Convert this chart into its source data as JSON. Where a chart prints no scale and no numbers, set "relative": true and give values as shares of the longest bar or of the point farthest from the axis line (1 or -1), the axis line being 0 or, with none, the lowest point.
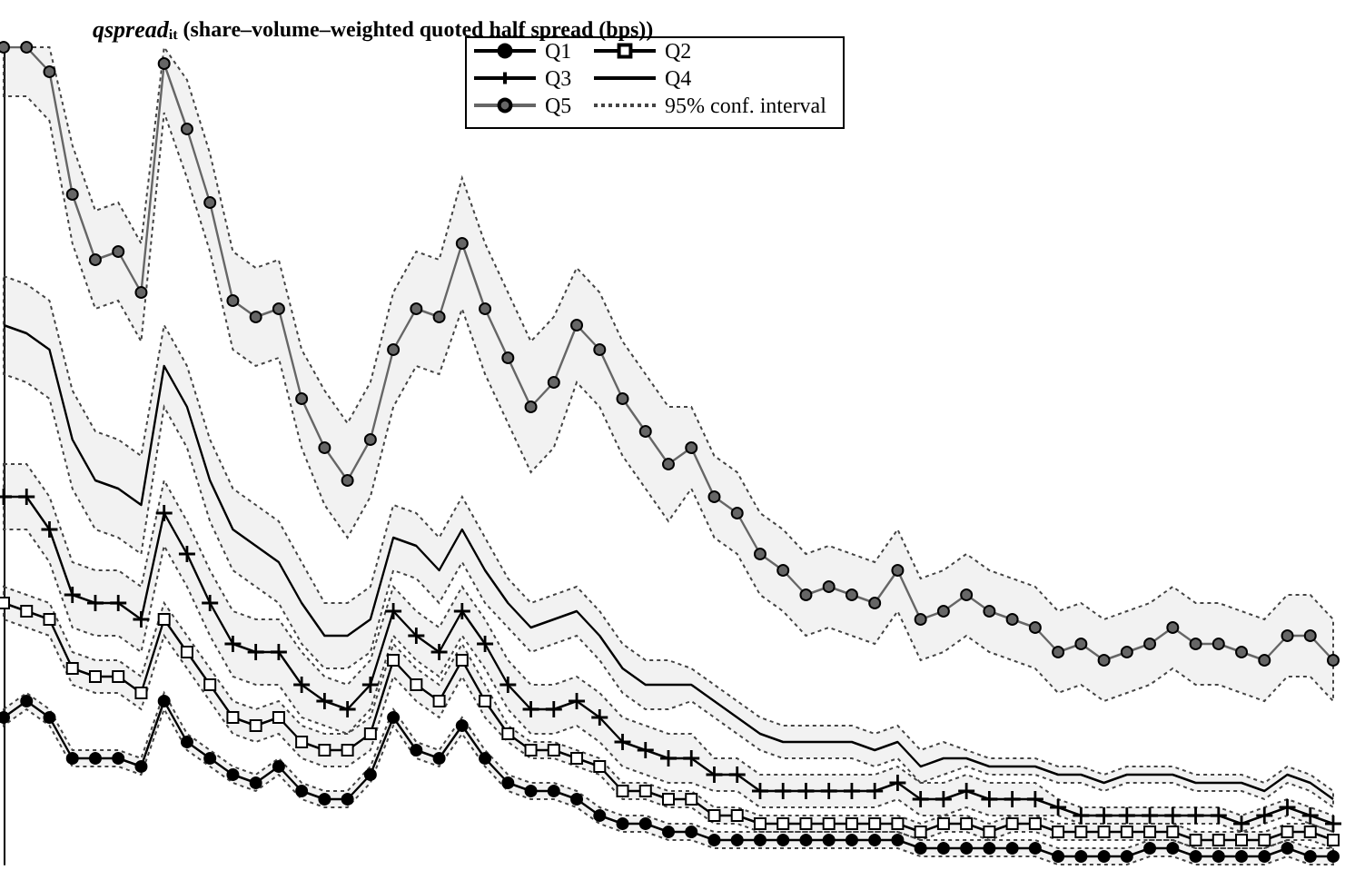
{
  "chart_data": {
    "type": "line",
    "relative": true,
    "title": "qspread$_{it}$ (share–volume–weighted quoted half spread (bps))",
    "annotations": [
      "95% conf. interval"
    ],
    "legend": "top",
    "categories": [
      null,
      null,
      null,
      null,
      null,
      null,
      null,
      null,
      null,
      null,
      null,
      null,
      null,
      null,
      null,
      null,
      null,
      null,
      null,
      null,
      null,
      null,
      null,
      null,
      null,
      null,
      null,
      null,
      null,
      null,
      null,
      null,
      null,
      null,
      null,
      null,
      null,
      null,
      null,
      null,
      null,
      null,
      null,
      null,
      null,
      null,
      null,
      null,
      null,
      null,
      null,
      null,
      null,
      null,
      null,
      null,
      null,
      null,
      null
    ],
    "series": [
      {
        "name": "Q1",
        "color": "#000000",
        "marker": "circle",
        "values": [
          0.18,
          0.2,
          0.18,
          0.13,
          0.13,
          0.13,
          0.12,
          0.2,
          0.15,
          0.13,
          0.11,
          0.1,
          0.12,
          0.09,
          0.08,
          0.08,
          0.11,
          0.18,
          0.14,
          0.13,
          0.17,
          0.13,
          0.1,
          0.09,
          0.09,
          0.08,
          0.06,
          0.05,
          0.05,
          0.04,
          0.04,
          0.03,
          0.03,
          0.03,
          0.03,
          0.03,
          0.03,
          0.03,
          0.03,
          0.03,
          0.02,
          0.02,
          0.02,
          0.02,
          0.02,
          0.02,
          0.01,
          0.01,
          0.01,
          0.01,
          0.02,
          0.02,
          0.01,
          0.01,
          0.01,
          0.01,
          0.02,
          0.01,
          0.01
        ],
        "upper": [
          0.19,
          0.21,
          0.19,
          0.14,
          0.14,
          0.14,
          0.13,
          0.21,
          0.16,
          0.14,
          0.12,
          0.11,
          0.13,
          0.1,
          0.09,
          0.09,
          0.12,
          0.19,
          0.15,
          0.14,
          0.18,
          0.14,
          0.11,
          0.1,
          0.1,
          0.09,
          0.07,
          0.06,
          0.06,
          0.05,
          0.05,
          0.04,
          0.04,
          0.04,
          0.04,
          0.04,
          0.04,
          0.04,
          0.04,
          0.04,
          0.03,
          0.03,
          0.03,
          0.03,
          0.03,
          0.03,
          0.02,
          0.02,
          0.02,
          0.02,
          0.03,
          0.03,
          0.02,
          0.02,
          0.02,
          0.02,
          0.03,
          0.02,
          0.02
        ],
        "lower": [
          0.17,
          0.19,
          0.17,
          0.12,
          0.12,
          0.12,
          0.11,
          0.19,
          0.14,
          0.12,
          0.1,
          0.09,
          0.11,
          0.08,
          0.07,
          0.07,
          0.1,
          0.17,
          0.13,
          0.12,
          0.16,
          0.12,
          0.09,
          0.08,
          0.08,
          0.07,
          0.05,
          0.04,
          0.04,
          0.03,
          0.03,
          0.02,
          0.02,
          0.02,
          0.02,
          0.02,
          0.02,
          0.02,
          0.02,
          0.02,
          0.01,
          0.01,
          0.01,
          0.01,
          0.01,
          0.01,
          0.0,
          0.0,
          0.0,
          0.0,
          0.01,
          0.01,
          0.0,
          0.0,
          0.0,
          0.0,
          0.01,
          0.0,
          0.0
        ]
      },
      {
        "name": "Q2",
        "color": "#000000",
        "marker": "square",
        "values": [
          0.32,
          0.31,
          0.3,
          0.24,
          0.23,
          0.23,
          0.21,
          0.3,
          0.26,
          0.22,
          0.18,
          0.17,
          0.18,
          0.15,
          0.14,
          0.14,
          0.16,
          0.25,
          0.22,
          0.2,
          0.25,
          0.2,
          0.16,
          0.14,
          0.14,
          0.13,
          0.12,
          0.09,
          0.09,
          0.08,
          0.08,
          0.06,
          0.06,
          0.05,
          0.05,
          0.05,
          0.05,
          0.05,
          0.05,
          0.05,
          0.04,
          0.05,
          0.05,
          0.04,
          0.05,
          0.05,
          0.04,
          0.04,
          0.04,
          0.04,
          0.04,
          0.04,
          0.03,
          0.03,
          0.03,
          0.03,
          0.04,
          0.04,
          0.03
        ],
        "upper": [
          0.34,
          0.33,
          0.32,
          0.26,
          0.25,
          0.25,
          0.23,
          0.32,
          0.28,
          0.24,
          0.2,
          0.19,
          0.2,
          0.17,
          0.16,
          0.16,
          0.18,
          0.27,
          0.24,
          0.22,
          0.27,
          0.22,
          0.17,
          0.15,
          0.15,
          0.14,
          0.13,
          0.1,
          0.1,
          0.09,
          0.09,
          0.07,
          0.07,
          0.06,
          0.06,
          0.06,
          0.06,
          0.06,
          0.06,
          0.06,
          0.05,
          0.06,
          0.06,
          0.05,
          0.06,
          0.06,
          0.05,
          0.05,
          0.05,
          0.05,
          0.05,
          0.05,
          0.04,
          0.04,
          0.04,
          0.04,
          0.05,
          0.05,
          0.04
        ],
        "lower": [
          0.3,
          0.29,
          0.28,
          0.22,
          0.21,
          0.21,
          0.19,
          0.28,
          0.24,
          0.2,
          0.16,
          0.15,
          0.16,
          0.13,
          0.12,
          0.12,
          0.14,
          0.23,
          0.2,
          0.18,
          0.23,
          0.18,
          0.15,
          0.13,
          0.13,
          0.12,
          0.11,
          0.08,
          0.08,
          0.07,
          0.07,
          0.05,
          0.05,
          0.04,
          0.04,
          0.04,
          0.04,
          0.04,
          0.04,
          0.04,
          0.03,
          0.04,
          0.04,
          0.03,
          0.04,
          0.04,
          0.03,
          0.03,
          0.03,
          0.03,
          0.03,
          0.03,
          0.02,
          0.02,
          0.02,
          0.02,
          0.03,
          0.03,
          0.02
        ]
      },
      {
        "name": "Q3",
        "color": "#000000",
        "marker": "cross",
        "values": [
          0.45,
          0.45,
          0.41,
          0.33,
          0.32,
          0.32,
          0.3,
          0.43,
          0.38,
          0.32,
          0.27,
          0.26,
          0.26,
          0.22,
          0.2,
          0.19,
          0.22,
          0.31,
          0.28,
          0.26,
          0.31,
          0.27,
          0.22,
          0.19,
          0.19,
          0.2,
          0.18,
          0.15,
          0.14,
          0.13,
          0.13,
          0.11,
          0.11,
          0.09,
          0.09,
          0.09,
          0.09,
          0.09,
          0.09,
          0.1,
          0.08,
          0.08,
          0.09,
          0.08,
          0.08,
          0.08,
          0.07,
          0.06,
          0.06,
          0.06,
          0.06,
          0.06,
          0.06,
          0.06,
          0.05,
          0.06,
          0.07,
          0.06,
          0.05
        ],
        "upper": [
          0.49,
          0.49,
          0.45,
          0.37,
          0.36,
          0.36,
          0.34,
          0.47,
          0.42,
          0.36,
          0.31,
          0.3,
          0.3,
          0.26,
          0.23,
          0.22,
          0.25,
          0.34,
          0.31,
          0.29,
          0.34,
          0.3,
          0.25,
          0.22,
          0.22,
          0.23,
          0.21,
          0.18,
          0.17,
          0.16,
          0.16,
          0.13,
          0.13,
          0.11,
          0.11,
          0.11,
          0.11,
          0.11,
          0.11,
          0.12,
          0.1,
          0.1,
          0.11,
          0.1,
          0.1,
          0.1,
          0.08,
          0.07,
          0.07,
          0.07,
          0.07,
          0.07,
          0.07,
          0.07,
          0.06,
          0.07,
          0.08,
          0.07,
          0.06
        ],
        "lower": [
          0.41,
          0.41,
          0.37,
          0.29,
          0.28,
          0.28,
          0.26,
          0.39,
          0.34,
          0.28,
          0.23,
          0.22,
          0.22,
          0.18,
          0.17,
          0.16,
          0.19,
          0.28,
          0.25,
          0.23,
          0.28,
          0.24,
          0.19,
          0.16,
          0.16,
          0.17,
          0.15,
          0.12,
          0.11,
          0.1,
          0.1,
          0.09,
          0.09,
          0.07,
          0.07,
          0.07,
          0.07,
          0.07,
          0.07,
          0.08,
          0.06,
          0.06,
          0.07,
          0.06,
          0.06,
          0.06,
          0.06,
          0.05,
          0.05,
          0.05,
          0.05,
          0.05,
          0.05,
          0.05,
          0.04,
          0.05,
          0.06,
          0.05,
          0.04
        ]
      },
      {
        "name": "Q4",
        "color": "#000000",
        "marker": "none",
        "values": [
          0.66,
          0.65,
          0.63,
          0.52,
          0.47,
          0.46,
          0.44,
          0.61,
          0.56,
          0.47,
          0.41,
          0.39,
          0.37,
          0.32,
          0.28,
          0.28,
          0.3,
          0.4,
          0.39,
          0.36,
          0.41,
          0.36,
          0.32,
          0.29,
          0.3,
          0.31,
          0.28,
          0.24,
          0.22,
          0.22,
          0.22,
          0.2,
          0.18,
          0.16,
          0.15,
          0.15,
          0.15,
          0.15,
          0.14,
          0.15,
          0.12,
          0.13,
          0.13,
          0.12,
          0.12,
          0.12,
          0.11,
          0.11,
          0.1,
          0.11,
          0.11,
          0.11,
          0.1,
          0.1,
          0.1,
          0.09,
          0.11,
          0.1,
          0.08
        ],
        "upper": [
          0.72,
          0.71,
          0.69,
          0.58,
          0.53,
          0.52,
          0.5,
          0.66,
          0.61,
          0.52,
          0.46,
          0.44,
          0.42,
          0.37,
          0.32,
          0.32,
          0.34,
          0.44,
          0.43,
          0.4,
          0.45,
          0.4,
          0.35,
          0.32,
          0.33,
          0.34,
          0.31,
          0.27,
          0.25,
          0.25,
          0.24,
          0.22,
          0.2,
          0.18,
          0.17,
          0.17,
          0.17,
          0.17,
          0.16,
          0.17,
          0.14,
          0.15,
          0.14,
          0.13,
          0.13,
          0.13,
          0.12,
          0.12,
          0.11,
          0.12,
          0.12,
          0.12,
          0.11,
          0.11,
          0.11,
          0.1,
          0.12,
          0.11,
          0.09
        ],
        "lower": [
          0.6,
          0.59,
          0.57,
          0.46,
          0.41,
          0.4,
          0.38,
          0.56,
          0.51,
          0.42,
          0.36,
          0.34,
          0.32,
          0.27,
          0.24,
          0.24,
          0.26,
          0.36,
          0.35,
          0.32,
          0.37,
          0.32,
          0.29,
          0.26,
          0.27,
          0.28,
          0.25,
          0.21,
          0.19,
          0.19,
          0.2,
          0.18,
          0.16,
          0.14,
          0.13,
          0.13,
          0.13,
          0.13,
          0.12,
          0.13,
          0.1,
          0.11,
          0.12,
          0.11,
          0.11,
          0.11,
          0.1,
          0.1,
          0.09,
          0.1,
          0.1,
          0.1,
          0.09,
          0.09,
          0.09,
          0.08,
          0.1,
          0.09,
          0.07
        ]
      },
      {
        "name": "Q5",
        "color": "#666666",
        "marker": "circle",
        "values": [
          1.0,
          1.0,
          0.97,
          0.82,
          0.74,
          0.75,
          0.7,
          0.98,
          0.9,
          0.81,
          0.69,
          0.67,
          0.68,
          0.57,
          0.51,
          0.47,
          0.52,
          0.63,
          0.68,
          0.67,
          0.76,
          0.68,
          0.62,
          0.56,
          0.59,
          0.66,
          0.63,
          0.57,
          0.53,
          0.49,
          0.51,
          0.45,
          0.43,
          0.38,
          0.36,
          0.33,
          0.34,
          0.33,
          0.32,
          0.36,
          0.3,
          0.31,
          0.33,
          0.31,
          0.3,
          0.29,
          0.26,
          0.27,
          0.25,
          0.26,
          0.27,
          0.29,
          0.27,
          0.27,
          0.26,
          0.25,
          0.28,
          0.28,
          0.25
        ],
        "upper": [
          1.0,
          1.0,
          1.0,
          0.88,
          0.8,
          0.81,
          0.76,
          1.0,
          0.96,
          0.87,
          0.75,
          0.73,
          0.74,
          0.63,
          0.58,
          0.54,
          0.59,
          0.7,
          0.75,
          0.74,
          0.84,
          0.76,
          0.7,
          0.64,
          0.67,
          0.73,
          0.7,
          0.64,
          0.6,
          0.56,
          0.56,
          0.5,
          0.48,
          0.43,
          0.41,
          0.38,
          0.39,
          0.38,
          0.37,
          0.41,
          0.35,
          0.36,
          0.38,
          0.36,
          0.35,
          0.34,
          0.31,
          0.32,
          0.3,
          0.31,
          0.32,
          0.34,
          0.32,
          0.32,
          0.31,
          0.3,
          0.33,
          0.33,
          0.3
        ],
        "lower": [
          0.94,
          0.94,
          0.91,
          0.76,
          0.68,
          0.69,
          0.64,
          0.92,
          0.84,
          0.75,
          0.63,
          0.61,
          0.62,
          0.51,
          0.44,
          0.4,
          0.45,
          0.56,
          0.61,
          0.6,
          0.68,
          0.6,
          0.54,
          0.48,
          0.51,
          0.59,
          0.56,
          0.5,
          0.46,
          0.42,
          0.46,
          0.4,
          0.38,
          0.33,
          0.31,
          0.28,
          0.29,
          0.28,
          0.27,
          0.31,
          0.25,
          0.26,
          0.28,
          0.26,
          0.25,
          0.24,
          0.21,
          0.22,
          0.2,
          0.21,
          0.22,
          0.24,
          0.22,
          0.22,
          0.21,
          0.2,
          0.23,
          0.23,
          0.2
        ]
      }
    ]
  }
}
